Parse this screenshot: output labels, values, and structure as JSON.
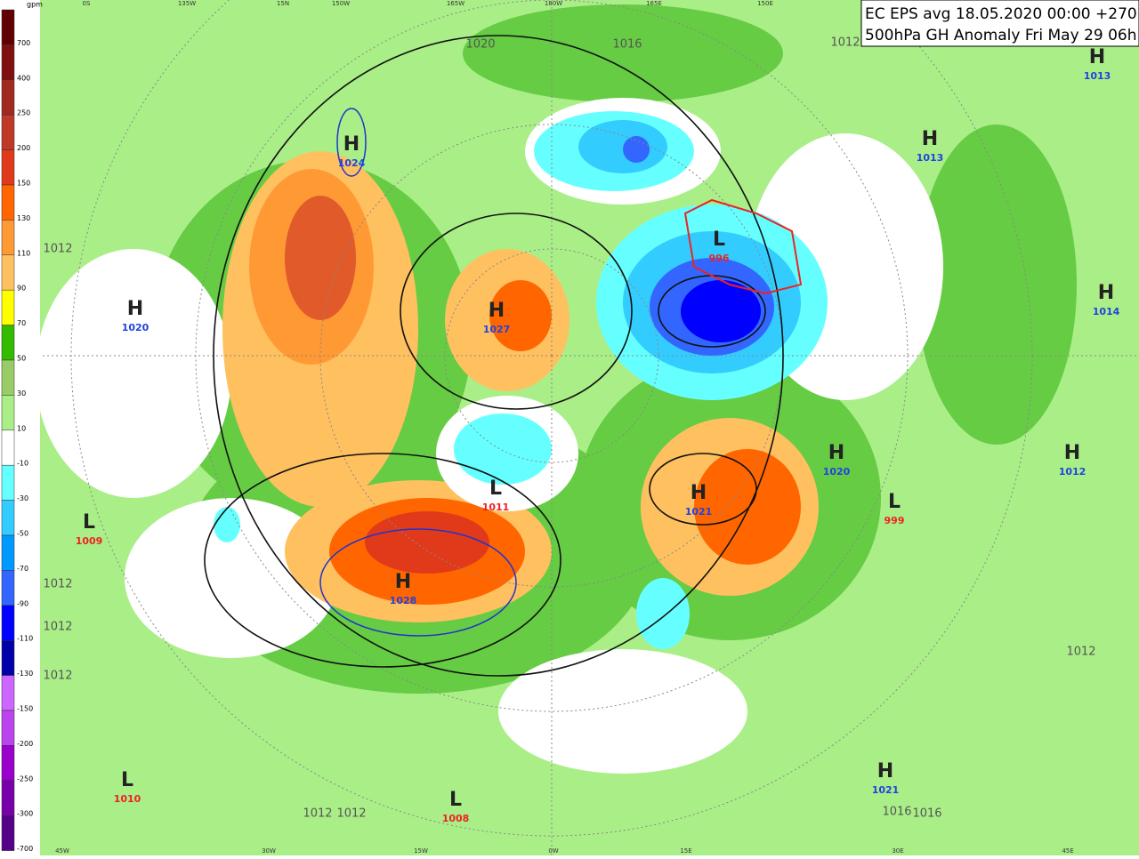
{
  "header": {
    "lines": [
      "EC EPS avg 18.05.2020 00:00 +270 h",
      "500hPa GH Anomaly Fri May 29 06h"
    ]
  },
  "legend": {
    "unit": "gpm",
    "levels": [
      700,
      400,
      250,
      200,
      150,
      130,
      110,
      90,
      70,
      50,
      30,
      10,
      -10,
      -30,
      -50,
      -70,
      -90,
      -110,
      -130,
      -150,
      -200,
      -250,
      -300,
      -700
    ],
    "colors": [
      "#600000",
      "#801010",
      "#a02a20",
      "#c03828",
      "#e03a1a",
      "#ff6600",
      "#ff9933",
      "#ffc060",
      "#ffff00",
      "#33bb00",
      "#99cc66",
      "#aaee88",
      "#ffffff",
      "#66ffff",
      "#33ccff",
      "#0099ff",
      "#3366ff",
      "#0000ff",
      "#0000aa",
      "#cc66ff",
      "#bb44ee",
      "#9900cc",
      "#7700aa",
      "#550088"
    ]
  },
  "centers": [
    {
      "label": "H",
      "value": 1024,
      "color": "#2244dd"
    },
    {
      "label": "L",
      "value": 996,
      "color": "#ee2222"
    },
    {
      "label": "H",
      "value": 1020,
      "color": "#2244dd"
    },
    {
      "label": "H",
      "value": 1027,
      "color": "#2244dd"
    },
    {
      "label": "H",
      "value": 1013,
      "color": "#2244dd"
    },
    {
      "label": "H",
      "value": 1013,
      "color": "#2244dd"
    },
    {
      "label": "H",
      "value": 1014,
      "color": "#2244dd"
    },
    {
      "label": "H",
      "value": 1012,
      "color": "#2244dd"
    },
    {
      "label": "L",
      "value": 1011,
      "color": "#ee2222"
    },
    {
      "label": "H",
      "value": 1021,
      "color": "#2244dd"
    },
    {
      "label": "L",
      "value": 999,
      "color": "#ee2222"
    },
    {
      "label": "H",
      "value": 1028,
      "color": "#2244dd"
    },
    {
      "label": "L",
      "value": 1010,
      "color": "#ee2222"
    },
    {
      "label": "L",
      "value": 1008,
      "color": "#ee2222"
    },
    {
      "label": "H",
      "value": 1021,
      "color": "#2244dd"
    },
    {
      "label": "L",
      "value": 1009,
      "color": "#ee2222"
    },
    {
      "label": "H",
      "value": 1020,
      "color": "#2244dd"
    }
  ],
  "isobar_labels": [
    1020,
    1016,
    1012,
    1012,
    1012,
    1012,
    1012,
    1016,
    1016,
    1012,
    1012,
    1012
  ],
  "longitude_labels": [
    "0S",
    "135W",
    "15N",
    "150W",
    "165W",
    "180W",
    "165E",
    "150E",
    "45W",
    "30W",
    "15W",
    "0W",
    "15E",
    "30E",
    "45E"
  ]
}
